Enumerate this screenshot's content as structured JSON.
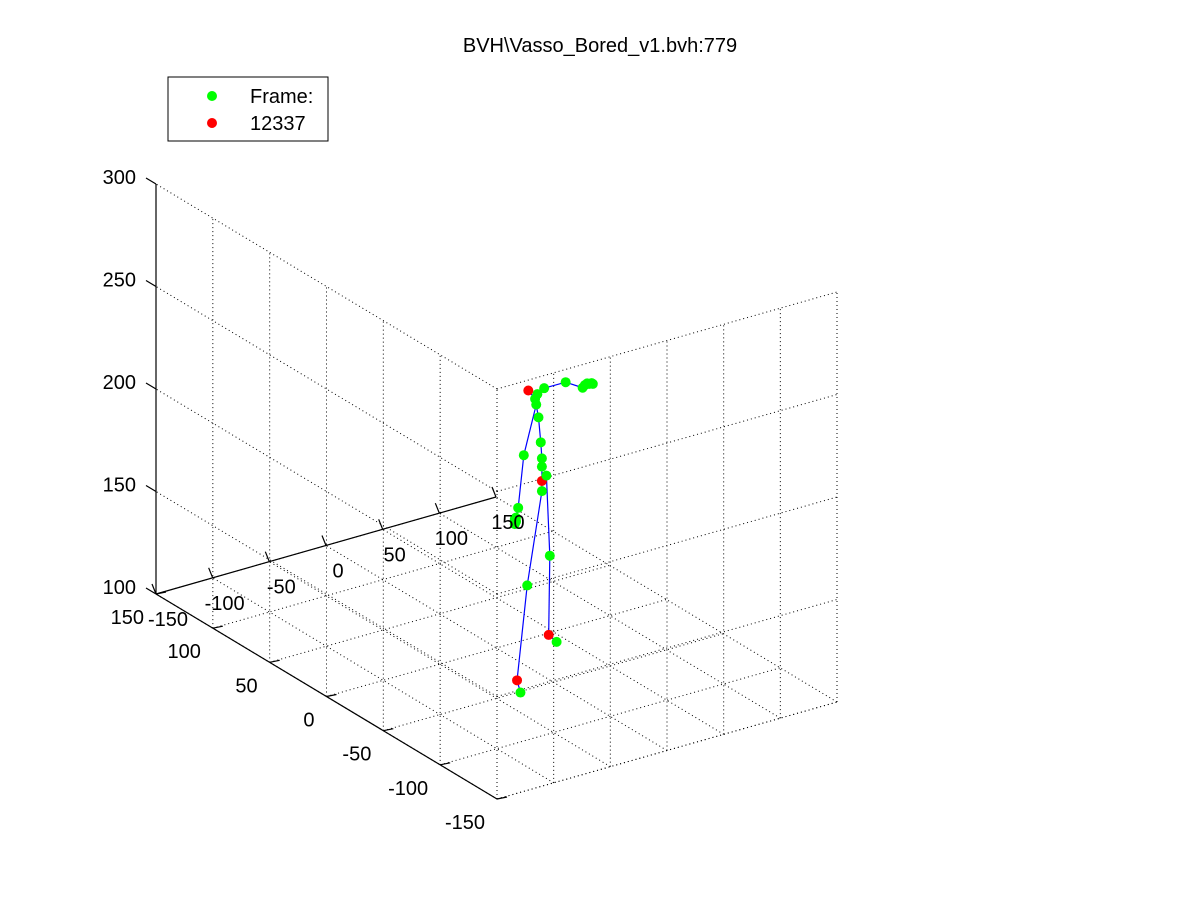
{
  "chart_data": {
    "type": "scatter",
    "title": "BVH\\Vasso_Bored_v1.bvh:779",
    "view": "3d",
    "grid": true,
    "legend": {
      "placement": "top-left",
      "entries": [
        {
          "label": "Frame:",
          "color": "#00ff00"
        },
        {
          "label": "12337",
          "color": "#ff0000"
        }
      ]
    },
    "axes": {
      "x": {
        "range": [
          -150,
          150
        ],
        "ticks": [
          "-150",
          "-100",
          "-50",
          "0",
          "50",
          "100",
          "150"
        ]
      },
      "y": {
        "range": [
          -150,
          150
        ],
        "ticks": [
          "-150",
          "-100",
          "-50",
          "0",
          "50",
          "100",
          "150"
        ]
      },
      "z": {
        "range": [
          100,
          300
        ],
        "ticks": [
          "100",
          "150",
          "200",
          "250",
          "300"
        ]
      }
    },
    "colors": {
      "joint": "#00ff00",
      "highlight": "#ff0000",
      "bone": "#0000ff",
      "grid": "#000000"
    },
    "joints": [
      {
        "name": "hips",
        "x": 20,
        "y": -20,
        "z": 185,
        "color": "red"
      },
      {
        "name": "l_hip",
        "x": 14,
        "y": -26,
        "z": 183
      },
      {
        "name": "r_hip",
        "x": 28,
        "y": -16,
        "z": 185
      },
      {
        "name": "l_knee",
        "x": -3,
        "y": -30,
        "z": 141
      },
      {
        "name": "r_knee",
        "x": 34,
        "y": -13,
        "z": 144
      },
      {
        "name": "l_ankle",
        "x": -26,
        "y": -44,
        "z": 103,
        "color": "red"
      },
      {
        "name": "l_foot",
        "x": -30,
        "y": -51,
        "z": 100
      },
      {
        "name": "r_ankle",
        "x": 32,
        "y": -14,
        "z": 106,
        "color": "red"
      },
      {
        "name": "r_foot",
        "x": 38,
        "y": -15,
        "z": 102
      },
      {
        "name": "spine",
        "x": 20,
        "y": -20,
        "z": 192
      },
      {
        "name": "spine1",
        "x": 20,
        "y": -20,
        "z": 196
      },
      {
        "name": "spine2",
        "x": 19,
        "y": -20,
        "z": 204
      },
      {
        "name": "neck",
        "x": 18,
        "y": -19,
        "z": 216
      },
      {
        "name": "neck1",
        "x": 16,
        "y": -18,
        "z": 225
      },
      {
        "name": "head",
        "x": 18,
        "y": -18,
        "z": 227
      },
      {
        "name": "head_end",
        "x": 6,
        "y": -22,
        "z": 232,
        "color": "red"
      },
      {
        "name": "l_shoulder",
        "x": 13,
        "y": -22,
        "z": 224
      },
      {
        "name": "l_elbow",
        "x": -6,
        "y": -30,
        "z": 205
      },
      {
        "name": "l_wrist",
        "x": -23,
        "y": -42,
        "z": 186
      },
      {
        "name": "l_hand1",
        "x": -28,
        "y": -45,
        "z": 183
      },
      {
        "name": "l_hand2",
        "x": -29,
        "y": -46,
        "z": 182
      },
      {
        "name": "l_hand3",
        "x": -30,
        "y": -47,
        "z": 182
      },
      {
        "name": "l_hand4",
        "x": -31,
        "y": -47,
        "z": 181
      },
      {
        "name": "l_hand5",
        "x": -30,
        "y": -46,
        "z": 183
      },
      {
        "name": "r_shoulder",
        "x": 28,
        "y": -14,
        "z": 227
      },
      {
        "name": "r_elbow",
        "x": 57,
        "y": -4,
        "z": 222
      },
      {
        "name": "r_wrist",
        "x": 80,
        "y": 4,
        "z": 213
      },
      {
        "name": "r_hand1",
        "x": 84,
        "y": 6,
        "z": 213
      },
      {
        "name": "r_hand2",
        "x": 87,
        "y": 7,
        "z": 213
      },
      {
        "name": "r_hand3",
        "x": 90,
        "y": 8,
        "z": 212
      },
      {
        "name": "r_hand4",
        "x": 92,
        "y": 8,
        "z": 212
      },
      {
        "name": "r_hand5",
        "x": 94,
        "y": 9,
        "z": 211
      }
    ],
    "bones": [
      [
        "hips",
        "l_hip"
      ],
      [
        "hips",
        "r_hip"
      ],
      [
        "l_hip",
        "l_knee"
      ],
      [
        "l_knee",
        "l_ankle"
      ],
      [
        "l_ankle",
        "l_foot"
      ],
      [
        "r_hip",
        "r_knee"
      ],
      [
        "r_knee",
        "r_ankle"
      ],
      [
        "r_ankle",
        "r_foot"
      ],
      [
        "hips",
        "spine"
      ],
      [
        "spine",
        "spine1"
      ],
      [
        "spine1",
        "spine2"
      ],
      [
        "spine2",
        "neck"
      ],
      [
        "neck",
        "neck1"
      ],
      [
        "neck1",
        "head"
      ],
      [
        "neck1",
        "head_end"
      ],
      [
        "neck1",
        "l_shoulder"
      ],
      [
        "l_shoulder",
        "l_elbow"
      ],
      [
        "l_elbow",
        "l_wrist"
      ],
      [
        "l_wrist",
        "l_hand1"
      ],
      [
        "neck1",
        "r_shoulder"
      ],
      [
        "r_shoulder",
        "r_elbow"
      ],
      [
        "r_elbow",
        "r_wrist"
      ],
      [
        "r_wrist",
        "r_hand1"
      ]
    ]
  }
}
